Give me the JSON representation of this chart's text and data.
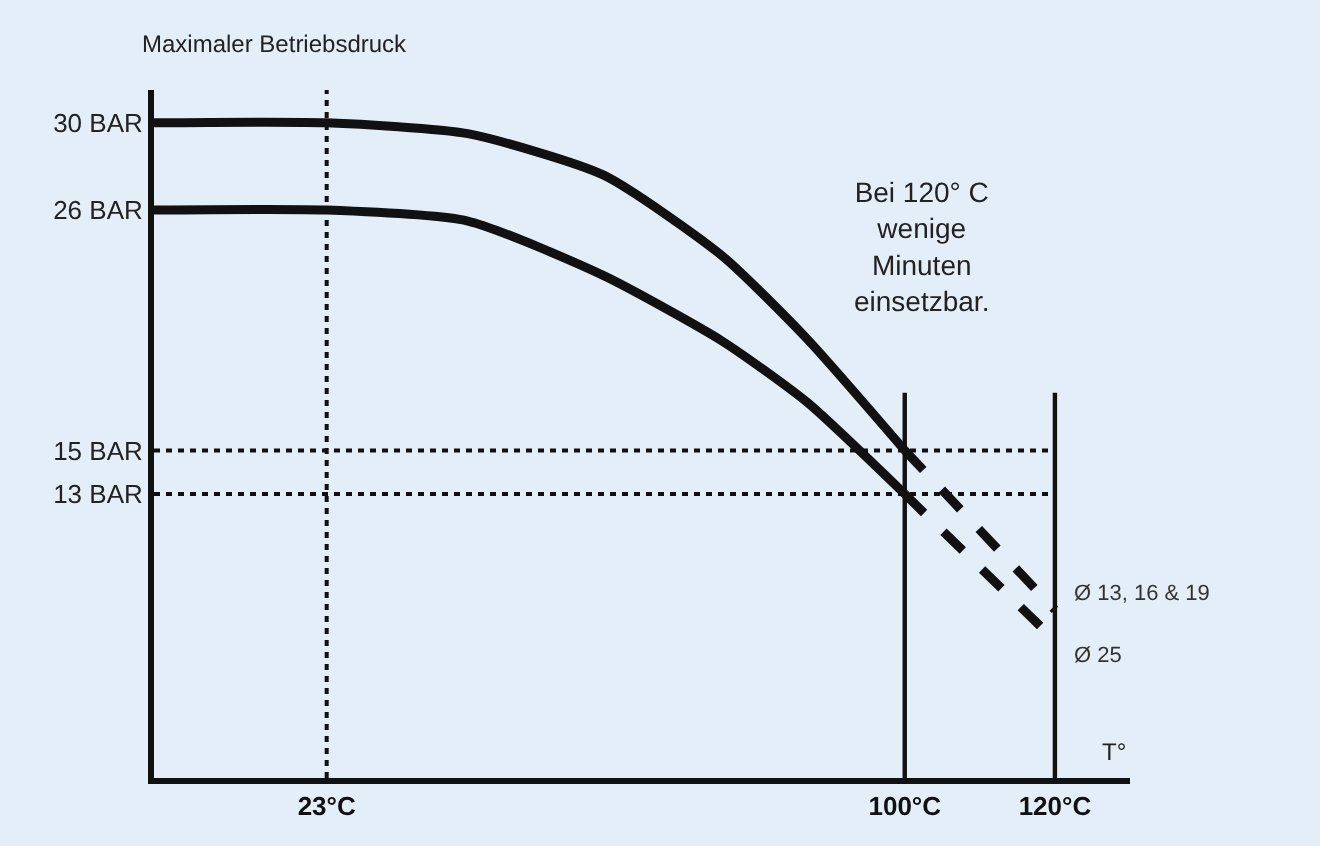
{
  "chart_data": {
    "type": "line",
    "ylabel": "Maximaler Betriebsdruck",
    "xlabel": "T°",
    "series": [
      {
        "color": "#111111",
        "line_style": "solid",
        "x": [
          0,
          23,
          41.8,
          59.9,
          75.7,
          87,
          100
        ],
        "values": [
          30,
          30,
          29.5,
          27.6,
          23.9,
          20.1,
          15
        ]
      },
      {
        "name": "Ø 13, 16 & 19",
        "color": "#111111",
        "line_style": "dashed",
        "x": [
          100,
          120
        ],
        "values": [
          15,
          7.7
        ]
      },
      {
        "color": "#111111",
        "line_style": "solid",
        "x": [
          0,
          23,
          41.8,
          59.9,
          75.7,
          87,
          100
        ],
        "values": [
          26,
          26,
          25.5,
          23.0,
          20.0,
          17.2,
          13
        ]
      },
      {
        "name": "Ø 25",
        "color": "#111111",
        "line_style": "dashed",
        "x": [
          100,
          120
        ],
        "values": [
          13,
          6.3
        ]
      }
    ],
    "xlim": [
      0,
      130
    ],
    "ylim": [
      0,
      31.5
    ],
    "xticks": [
      {
        "value": 23,
        "label": "23°C"
      },
      {
        "value": 100,
        "label": "100°C"
      },
      {
        "value": 120,
        "label": "120°C"
      }
    ],
    "yticks": [
      {
        "value": 13,
        "label": "13 BAR"
      },
      {
        "value": 15,
        "label": "15 BAR"
      },
      {
        "value": 26,
        "label": "26 BAR"
      },
      {
        "value": 30,
        "label": "30 BAR"
      }
    ],
    "ref_lines": [
      {
        "axis": "y",
        "value": 15,
        "line_style": "dotted"
      },
      {
        "axis": "y",
        "value": 13,
        "line_style": "dotted"
      },
      {
        "axis": "x",
        "value": 23,
        "line_style": "dotted"
      },
      {
        "axis": "x",
        "value": 100,
        "line_style": "solid"
      },
      {
        "axis": "x",
        "value": 120,
        "line_style": "solid"
      }
    ],
    "annotations": [
      "Bei 120° C\nwenige\nMinuten\neinsetzbar."
    ],
    "grid": false,
    "legend": false,
    "marker": "none"
  }
}
